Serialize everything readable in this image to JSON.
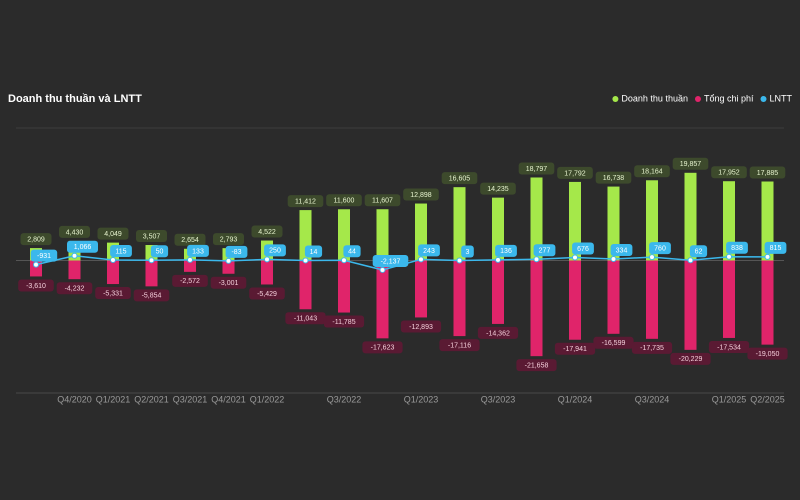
{
  "chart_data": {
    "type": "bar-line",
    "title": "Doanh thu thuần và LNTT",
    "categories": [
      null,
      "Q4/2020",
      "Q1/2021",
      "Q2/2021",
      "Q3/2021",
      "Q4/2021",
      "Q1/2022",
      null,
      "Q3/2022",
      null,
      "Q1/2023",
      null,
      "Q3/2023",
      null,
      "Q1/2024",
      null,
      "Q3/2024",
      null,
      "Q1/2025",
      "Q2/2025"
    ],
    "ylim": [
      -30000,
      30000
    ],
    "series": [
      {
        "name": "Doanh thu thuần",
        "type": "bar",
        "color": "#a5e84a",
        "values": [
          2809,
          4430,
          4049,
          3507,
          2654,
          2793,
          4522,
          11412,
          11600,
          11607,
          12898,
          16605,
          14235,
          18797,
          17792,
          16738,
          18164,
          19857,
          17952,
          17885
        ],
        "value_labels": [
          "2,809",
          "4,430",
          "4,049",
          "3,507",
          "2,654",
          "2,793",
          "4,522",
          "11,412",
          "11,600",
          "11,607",
          "12,898",
          "16,605",
          "14,235",
          "18,797",
          "17,792",
          "16,738",
          "18,164",
          "19,857",
          "17,952",
          "17,885"
        ]
      },
      {
        "name": "Tổng chi phí",
        "type": "bar",
        "color": "#e0246a",
        "values": [
          -3610,
          -4232,
          -5331,
          -5854,
          -2572,
          -3001,
          -5429,
          -11043,
          -11785,
          -17623,
          -12893,
          -17116,
          -14362,
          -21658,
          -17941,
          -16599,
          -17735,
          -20229,
          -17534,
          -19050
        ],
        "value_labels": [
          "-3,610",
          "-4,232",
          "-5,331",
          "-5,854",
          "-2,572",
          "-3,001",
          "-5,429",
          "-11,043",
          "-11,785",
          "-17,623",
          "-12,893",
          "-17,116",
          "-14,362",
          "-21,658",
          "-17,941",
          "-16,599",
          "-17,735",
          "-20,229",
          "-17,534",
          "-19,050"
        ]
      },
      {
        "name": "LNTT",
        "type": "line",
        "color": "#3bb8ec",
        "values": [
          -931,
          1066,
          115,
          50,
          133,
          -83,
          250,
          14,
          44,
          -2137,
          243,
          3,
          136,
          277,
          676,
          334,
          760,
          62,
          838,
          815
        ],
        "value_labels": [
          "-931",
          "1,066",
          "115",
          "50",
          "133",
          "-83",
          "250",
          "14",
          "44",
          "-2,137",
          "243",
          "3",
          "136",
          "277",
          "676",
          "334",
          "760",
          "62",
          "838",
          "815"
        ]
      }
    ]
  }
}
